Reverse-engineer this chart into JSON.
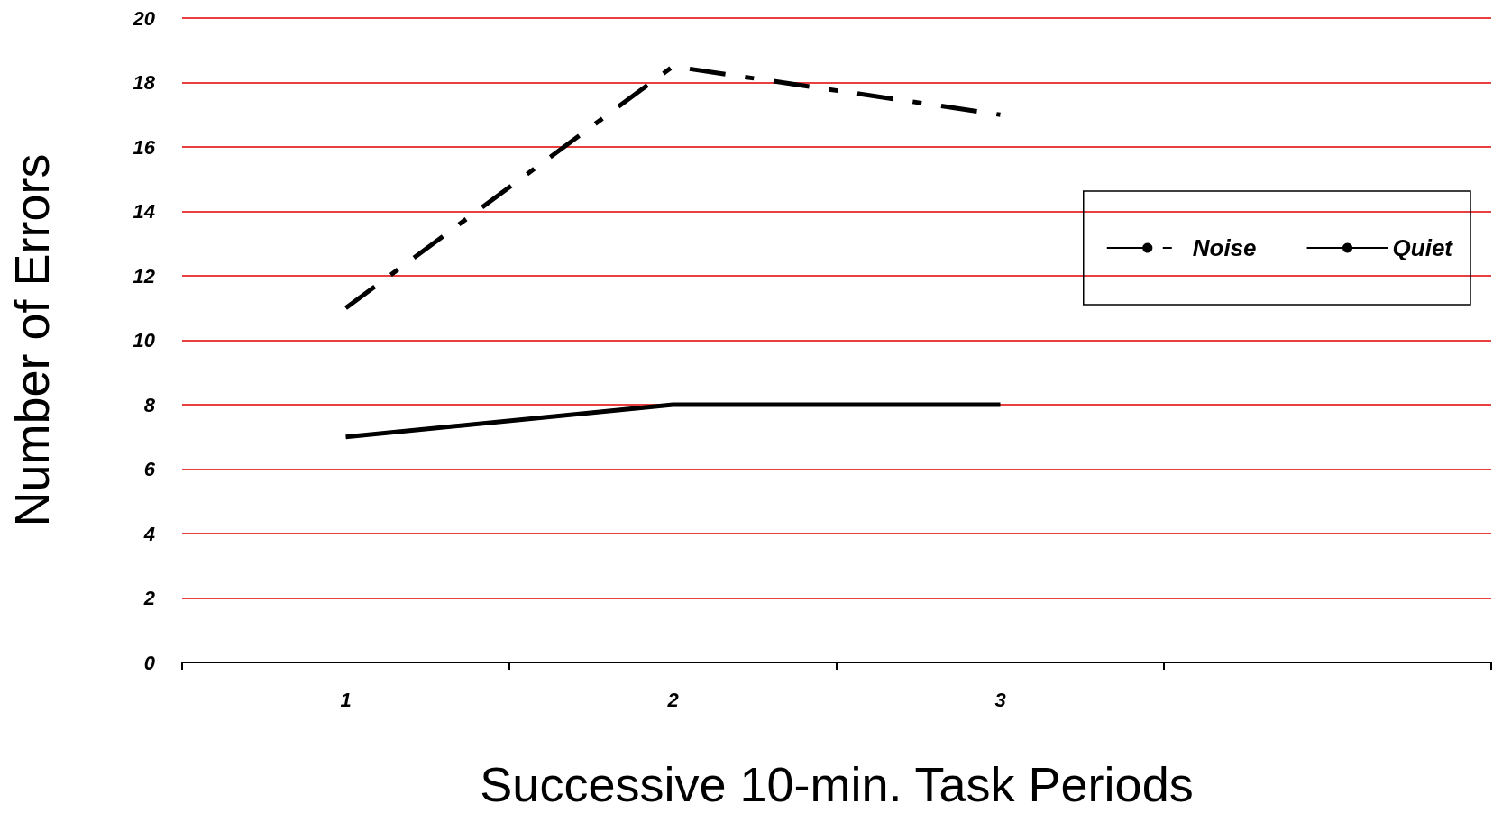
{
  "chart_data": {
    "type": "line",
    "xlabel": "Successive 10-min. Task Periods",
    "ylabel": "Number of Errors",
    "categories": [
      "1",
      "2",
      "3",
      null
    ],
    "series": [
      {
        "name": "Noise",
        "color": "#000000",
        "values": [
          11,
          18.5,
          17,
          null
        ],
        "line_style": "dashed"
      },
      {
        "name": "Quiet",
        "color": "#000000",
        "values": [
          7,
          8,
          8,
          null
        ],
        "line_style": "solid"
      }
    ],
    "ylim": [
      0,
      20
    ],
    "yticks": [
      0,
      2,
      4,
      6,
      8,
      10,
      12,
      14,
      16,
      18,
      20
    ],
    "grid": "y",
    "legend": "top right",
    "marker": "none"
  }
}
